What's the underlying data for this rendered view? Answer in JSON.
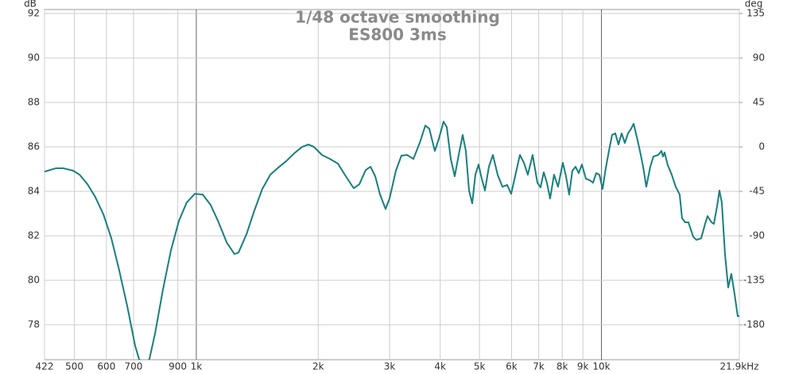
{
  "chart_data": {
    "type": "line",
    "title": "1/48 octave smoothing",
    "subtitle": "ES800 3ms",
    "ylabel": "dB",
    "y2label": "deg",
    "xscale": "log",
    "grid": true,
    "major_x_grid": [
      1000,
      10000
    ],
    "xlim": [
      422,
      21900
    ],
    "ylim": [
      76.43,
      92.18
    ],
    "y2lim": [
      -215.3,
      139.05
    ],
    "xticks": [
      422,
      500,
      600,
      700,
      900,
      {
        "value": 1000,
        "label": "1k"
      },
      {
        "value": 2000,
        "label": "2k"
      },
      {
        "value": 3000,
        "label": "3k"
      },
      {
        "value": 4000,
        "label": "4k"
      },
      {
        "value": 5000,
        "label": "5k"
      },
      {
        "value": 6000,
        "label": "6k"
      },
      {
        "value": 7000,
        "label": "7k"
      },
      {
        "value": 8000,
        "label": "8k"
      },
      {
        "value": 9000,
        "label": "9k"
      },
      {
        "value": 10000,
        "label": "10k"
      },
      {
        "value": 21900,
        "label": "21.9kHz"
      }
    ],
    "yticks": [
      92,
      90,
      88,
      86,
      84,
      82,
      80,
      78
    ],
    "y2ticks": [
      135,
      90,
      45,
      0,
      -45,
      -90,
      -135,
      -180
    ],
    "series": [
      {
        "name": "ES800 3ms",
        "color": "#177f7d",
        "x": [
          422,
          450,
          470,
          497,
          515,
          539,
          563,
          590,
          617,
          645,
          675,
          706,
          722,
          742,
          766,
          791,
          827,
          866,
          906,
          947,
          991,
          1037,
          1085,
          1135,
          1188,
          1242,
          1271,
          1330,
          1391,
          1455,
          1523,
          1593,
          1667,
          1744,
          1824,
          1891,
          1952,
          2042,
          2137,
          2236,
          2339,
          2447,
          2526,
          2619,
          2691,
          2765,
          2841,
          2932,
          2999,
          3109,
          3209,
          3312,
          3434,
          3560,
          3675,
          3759,
          3880,
          3968,
          4077,
          4152,
          4247,
          4344,
          4443,
          4545,
          4627,
          4712,
          4798,
          4885,
          4974,
          5065,
          5158,
          5275,
          5396,
          5544,
          5696,
          5852,
          5986,
          6123,
          6291,
          6435,
          6582,
          6763,
          6949,
          7075,
          7204,
          7336,
          7470,
          7640,
          7815,
          8030,
          8176,
          8325,
          8477,
          8632,
          8789,
          8950,
          9154,
          9363,
          9534,
          9708,
          9885,
          10066,
          10249,
          10436,
          10626,
          10820,
          11018,
          11218,
          11423,
          11632,
          11843,
          12005,
          12224,
          12447,
          12674,
          12905,
          13200,
          13441,
          13810,
          14062,
          14189,
          14318,
          14579,
          14912,
          15253,
          15601,
          15814,
          16103,
          16396,
          16847,
          17154,
          17626,
          18029,
          18275,
          18692,
          18947,
          19293,
          19556,
          19823,
          20185,
          20553,
          20927,
          21309,
          21698,
          21900
        ],
        "values": [
          84.89,
          85.04,
          85.04,
          84.93,
          84.75,
          84.32,
          83.75,
          82.96,
          81.89,
          80.46,
          78.86,
          77.07,
          76.46,
          76.2,
          76.46,
          77.61,
          79.57,
          81.36,
          82.68,
          83.5,
          83.89,
          83.86,
          83.39,
          82.61,
          81.71,
          81.18,
          81.25,
          82.07,
          83.14,
          84.11,
          84.75,
          85.07,
          85.36,
          85.71,
          86.0,
          86.11,
          86.0,
          85.64,
          85.46,
          85.25,
          84.68,
          84.14,
          84.32,
          84.96,
          85.11,
          84.68,
          83.86,
          83.21,
          83.68,
          84.93,
          85.61,
          85.64,
          85.46,
          86.18,
          86.96,
          86.82,
          85.82,
          86.36,
          87.14,
          86.89,
          85.46,
          84.68,
          85.64,
          86.54,
          85.82,
          84.04,
          83.46,
          84.75,
          85.21,
          84.57,
          84.04,
          85.11,
          85.64,
          84.75,
          84.21,
          84.29,
          83.89,
          84.68,
          85.64,
          85.29,
          84.75,
          85.64,
          84.39,
          84.18,
          84.86,
          84.39,
          83.68,
          84.75,
          84.21,
          85.29,
          84.68,
          83.86,
          84.93,
          85.11,
          84.82,
          85.21,
          84.57,
          84.5,
          84.39,
          84.82,
          84.75,
          84.11,
          85.04,
          85.82,
          86.54,
          86.61,
          86.11,
          86.61,
          86.18,
          86.61,
          86.82,
          87.04,
          86.46,
          85.82,
          85.11,
          84.21,
          85.11,
          85.57,
          85.64,
          85.82,
          85.57,
          85.75,
          85.18,
          84.75,
          84.21,
          83.86,
          82.79,
          82.61,
          82.61,
          81.96,
          81.82,
          81.89,
          82.54,
          82.89,
          82.61,
          82.54,
          83.32,
          84.04,
          83.5,
          81.18,
          79.68,
          80.29,
          79.39,
          78.39,
          78.39
        ]
      }
    ]
  }
}
